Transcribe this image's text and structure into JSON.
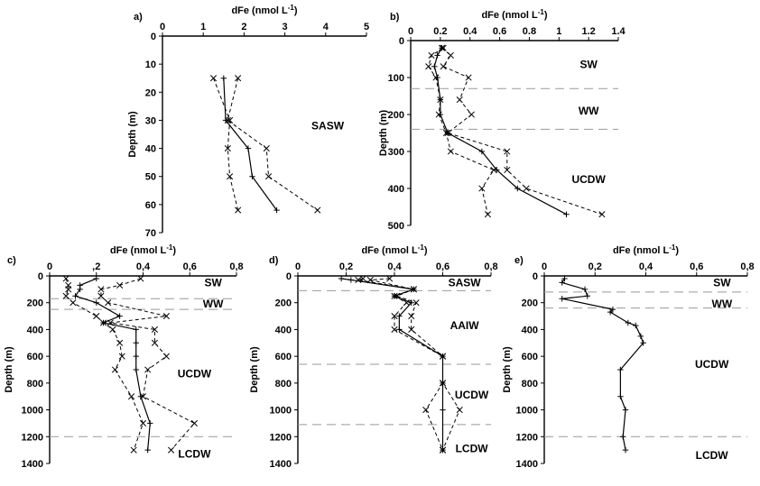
{
  "chart_data": [
    {
      "panel": "a)",
      "type": "line",
      "xlabel": "dFe (nmol L",
      "xlabel_sup": "-1",
      "xlabel_end": ")",
      "ylabel": "Depth (m)",
      "xlim": [
        0,
        5
      ],
      "ylim": [
        0,
        70
      ],
      "xticks": [
        "0",
        "1",
        "2",
        "3",
        "4",
        "5"
      ],
      "yticks": [
        "0",
        "10",
        "20",
        "30",
        "40",
        "50",
        "60",
        "70"
      ],
      "series": [
        {
          "style": "solid-plus",
          "x": [
            1.5,
            1.55,
            2.1,
            2.2,
            2.8
          ],
          "y": [
            15,
            30,
            40,
            50,
            62
          ]
        },
        {
          "style": "dashed-x",
          "x": [
            1.25,
            1.65,
            1.6,
            1.65,
            1.85
          ],
          "y": [
            15,
            30,
            40,
            50,
            62
          ]
        },
        {
          "style": "dashed-x",
          "x": [
            1.85,
            1.6,
            2.55,
            2.6,
            3.8
          ],
          "y": [
            15,
            30,
            40,
            50,
            62
          ]
        }
      ],
      "water_masses": [
        {
          "label": "SASW",
          "x": 4.05,
          "y": 32
        }
      ],
      "boundaries": []
    },
    {
      "panel": "b)",
      "type": "line",
      "xlabel": "dFe (nmol L",
      "xlabel_sup": "-1",
      "xlabel_end": ")",
      "ylabel": "Depth (m)",
      "xlim": [
        0,
        1.4
      ],
      "ylim": [
        0,
        500
      ],
      "xticks": [
        "0",
        "0.2",
        "0.4",
        "0.6",
        "0.8",
        "1",
        "1.2",
        "1.4"
      ],
      "yticks": [
        "0",
        "100",
        "200",
        "300",
        "400",
        "500"
      ],
      "series": [
        {
          "style": "solid-plus",
          "x": [
            0.21,
            0.18,
            0.16,
            0.18,
            0.2,
            0.2,
            0.25,
            0.48,
            0.58,
            0.72,
            1.05
          ],
          "y": [
            20,
            40,
            70,
            100,
            160,
            200,
            250,
            300,
            350,
            400,
            470
          ]
        },
        {
          "style": "dashed-x",
          "x": [
            0.22,
            0.14,
            0.12,
            0.17,
            0.2,
            0.19,
            0.24,
            0.27,
            0.56,
            0.48,
            0.52
          ],
          "y": [
            20,
            40,
            70,
            100,
            160,
            200,
            250,
            300,
            350,
            400,
            470
          ]
        },
        {
          "style": "dashed-x",
          "x": [
            0.21,
            0.27,
            0.22,
            0.39,
            0.33,
            0.41,
            0.25,
            0.65,
            0.65,
            0.78,
            1.29
          ],
          "y": [
            20,
            40,
            70,
            100,
            160,
            200,
            250,
            300,
            350,
            400,
            470
          ]
        }
      ],
      "water_masses": [
        {
          "label": "SW",
          "x": 1.2,
          "y": 65
        },
        {
          "label": "WW",
          "x": 1.2,
          "y": 190
        },
        {
          "label": "UCDW",
          "x": 1.2,
          "y": 375
        }
      ],
      "boundaries": [
        130,
        240
      ]
    },
    {
      "panel": "c)",
      "type": "line",
      "xlabel": "dFe (nmol L",
      "xlabel_sup": "-1",
      "xlabel_end": ")",
      "ylabel": "Depth (m)",
      "xlim": [
        0,
        0.8
      ],
      "ylim": [
        0,
        1400
      ],
      "xticks": [
        "0",
        ",2",
        "0,4",
        "0,6",
        "0,8"
      ],
      "yticks": [
        "0",
        "200",
        "400",
        "600",
        "800",
        "1000",
        "1200",
        "1400"
      ],
      "series": [
        {
          "style": "solid-plus",
          "x": [
            0.2,
            0.13,
            0.13,
            0.11,
            0.2,
            0.3,
            0.23,
            0.37,
            0.37,
            0.37,
            0.37,
            0.39,
            0.43,
            0.42
          ],
          "y": [
            20,
            70,
            100,
            150,
            200,
            300,
            350,
            400,
            500,
            600,
            700,
            900,
            1100,
            1300
          ]
        },
        {
          "style": "dashed-x",
          "x": [
            0.07,
            0.08,
            0.08,
            0.07,
            0.1,
            0.2,
            0.23,
            0.27,
            0.3,
            0.31,
            0.28,
            0.35,
            0.4,
            0.36
          ],
          "y": [
            20,
            70,
            100,
            150,
            200,
            300,
            350,
            400,
            500,
            600,
            700,
            900,
            1100,
            1300
          ]
        },
        {
          "style": "dashed-x",
          "x": [
            0.39,
            0.3,
            0.22,
            0.22,
            0.25,
            0.5,
            0.26,
            0.45,
            0.45,
            0.5,
            0.42,
            0.4,
            0.62,
            0.52
          ],
          "y": [
            20,
            70,
            100,
            150,
            200,
            300,
            350,
            400,
            500,
            600,
            700,
            900,
            1100,
            1300
          ]
        }
      ],
      "water_masses": [
        {
          "label": "SW",
          "x": 0.7,
          "y": 50
        },
        {
          "label": "WW",
          "x": 0.7,
          "y": 210
        },
        {
          "label": "UCDW",
          "x": 0.62,
          "y": 730
        },
        {
          "label": "LCDW",
          "x": 0.62,
          "y": 1330
        }
      ],
      "boundaries": [
        170,
        250,
        1200
      ]
    },
    {
      "panel": "d)",
      "type": "line",
      "xlabel": "dFe (nmol L",
      "xlabel_sup": "-1",
      "xlabel_end": ")",
      "ylabel": "Depth (m)",
      "xlim": [
        0,
        0.8
      ],
      "ylim": [
        0,
        1400
      ],
      "xticks": [
        "0",
        "0,2",
        "0,4",
        "0,6",
        "0,8"
      ],
      "yticks": [
        "0",
        "200",
        "400",
        "600",
        "800",
        "1000",
        "1200",
        "1400"
      ],
      "series": [
        {
          "style": "solid-plus",
          "x": [
            0.18,
            0.22,
            0.48,
            0.4,
            0.47,
            0.42,
            0.42,
            0.6,
            0.6,
            0.6,
            0.6
          ],
          "y": [
            20,
            30,
            100,
            150,
            200,
            300,
            400,
            600,
            800,
            1000,
            1300
          ]
        },
        {
          "style": "dashed-x",
          "x": [
            0.27,
            0.25,
            0.48,
            0.4,
            0.45,
            0.4,
            0.4,
            0.6,
            0.6,
            0.53,
            0.6
          ],
          "y": [
            20,
            30,
            100,
            150,
            200,
            300,
            400,
            600,
            800,
            1000,
            1300
          ]
        },
        {
          "style": "dashed-x",
          "x": [
            0.38,
            0.3,
            0.48,
            0.41,
            0.49,
            0.47,
            0.47,
            0.6,
            0.6,
            0.67,
            0.6
          ],
          "y": [
            20,
            30,
            100,
            150,
            200,
            300,
            400,
            600,
            800,
            1000,
            1300
          ]
        }
      ],
      "water_masses": [
        {
          "label": "SASW",
          "x": 0.69,
          "y": 50
        },
        {
          "label": "AAIW",
          "x": 0.69,
          "y": 370
        },
        {
          "label": "UCDW",
          "x": 0.72,
          "y": 890
        },
        {
          "label": "LCDW",
          "x": 0.72,
          "y": 1290
        }
      ],
      "boundaries": [
        110,
        660,
        1110
      ]
    },
    {
      "panel": "e)",
      "type": "line",
      "xlabel": "dFe (nmol L",
      "xlabel_sup": "-1",
      "xlabel_end": ")",
      "ylabel": "Depth (m)",
      "xlim": [
        0,
        0.8
      ],
      "ylim": [
        0,
        1400
      ],
      "xticks": [
        "0",
        "0,2",
        "0,4",
        "0,6",
        "0,8"
      ],
      "yticks": [
        "0",
        "200",
        "400",
        "600",
        "800",
        "1000",
        "1200",
        "1400"
      ],
      "series": [
        {
          "style": "solid-plus",
          "x": [
            0.08,
            0.07,
            0.16,
            0.17,
            0.07,
            0.27,
            0.26,
            0.33,
            0.36,
            0.38,
            0.39,
            0.3,
            0.3,
            0.32,
            0.31,
            0.32
          ],
          "y": [
            20,
            50,
            100,
            150,
            170,
            250,
            270,
            350,
            370,
            450,
            500,
            700,
            900,
            1000,
            1200,
            1300
          ]
        }
      ],
      "water_masses": [
        {
          "label": "SW",
          "x": 0.7,
          "y": 50
        },
        {
          "label": "WW",
          "x": 0.7,
          "y": 210
        },
        {
          "label": "UCDW",
          "x": 0.66,
          "y": 660
        },
        {
          "label": "LCDW",
          "x": 0.66,
          "y": 1340
        }
      ],
      "boundaries": [
        120,
        240,
        1200
      ]
    }
  ]
}
